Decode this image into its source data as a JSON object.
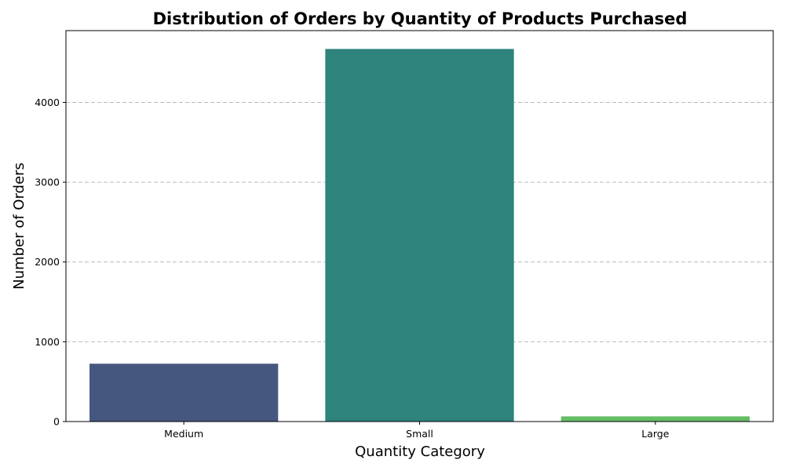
{
  "chart_data": {
    "type": "bar",
    "title": "Distribution of Orders by Quantity of Products Purchased",
    "xlabel": "Quantity Category",
    "ylabel": "Number of Orders",
    "categories": [
      "Medium",
      "Small",
      "Large"
    ],
    "values": [
      725,
      4670,
      65
    ],
    "colors": [
      "#46577f",
      "#2e837c",
      "#65bd66"
    ],
    "ylim": [
      0,
      4900
    ],
    "yticks": [
      0,
      1000,
      2000,
      3000,
      4000
    ],
    "grid": "y-dashed",
    "legend": "none"
  }
}
